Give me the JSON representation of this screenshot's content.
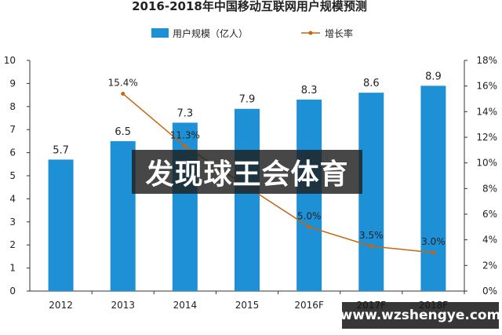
{
  "chart_data": {
    "type": "bar",
    "title": "2016-2018年中国移动互联网用户规模预测",
    "categories": [
      "2012",
      "2013",
      "2014",
      "2015",
      "2016F",
      "2017F",
      "2018F"
    ],
    "series": [
      {
        "name": "用户规模（亿人）",
        "type": "bar",
        "axis": "left",
        "color": "#1e90d6",
        "values": [
          5.7,
          6.5,
          7.3,
          7.9,
          8.3,
          8.6,
          8.9
        ],
        "labels": [
          "5.7",
          "6.5",
          "7.3",
          "7.9",
          "8.3",
          "8.6",
          "8.9"
        ]
      },
      {
        "name": "增长率",
        "type": "line",
        "axis": "right",
        "color": "#c8650f",
        "values": [
          null,
          15.4,
          11.3,
          null,
          5.0,
          3.5,
          3.0
        ],
        "labels": [
          "",
          "15.4%",
          "11.3%",
          "",
          "5.0%",
          "3.5%",
          "3.0%"
        ]
      }
    ],
    "y_left": {
      "min": 0,
      "max": 10,
      "ticks": [
        "0",
        "1",
        "2",
        "3",
        "4",
        "5",
        "6",
        "7",
        "8",
        "9",
        "10"
      ]
    },
    "y_right": {
      "min": 0,
      "max": 18,
      "ticks": [
        "0%",
        "2%",
        "4%",
        "6%",
        "8%",
        "10%",
        "12%",
        "14%",
        "16%",
        "18%"
      ]
    },
    "grid": false,
    "legend": "top-center"
  },
  "overlay": {
    "title": "发现球王会体育",
    "url": "www.wzshengye.com"
  },
  "colors": {
    "bar": "#1e90d6",
    "line": "#c8650f",
    "axis": "#333333"
  }
}
